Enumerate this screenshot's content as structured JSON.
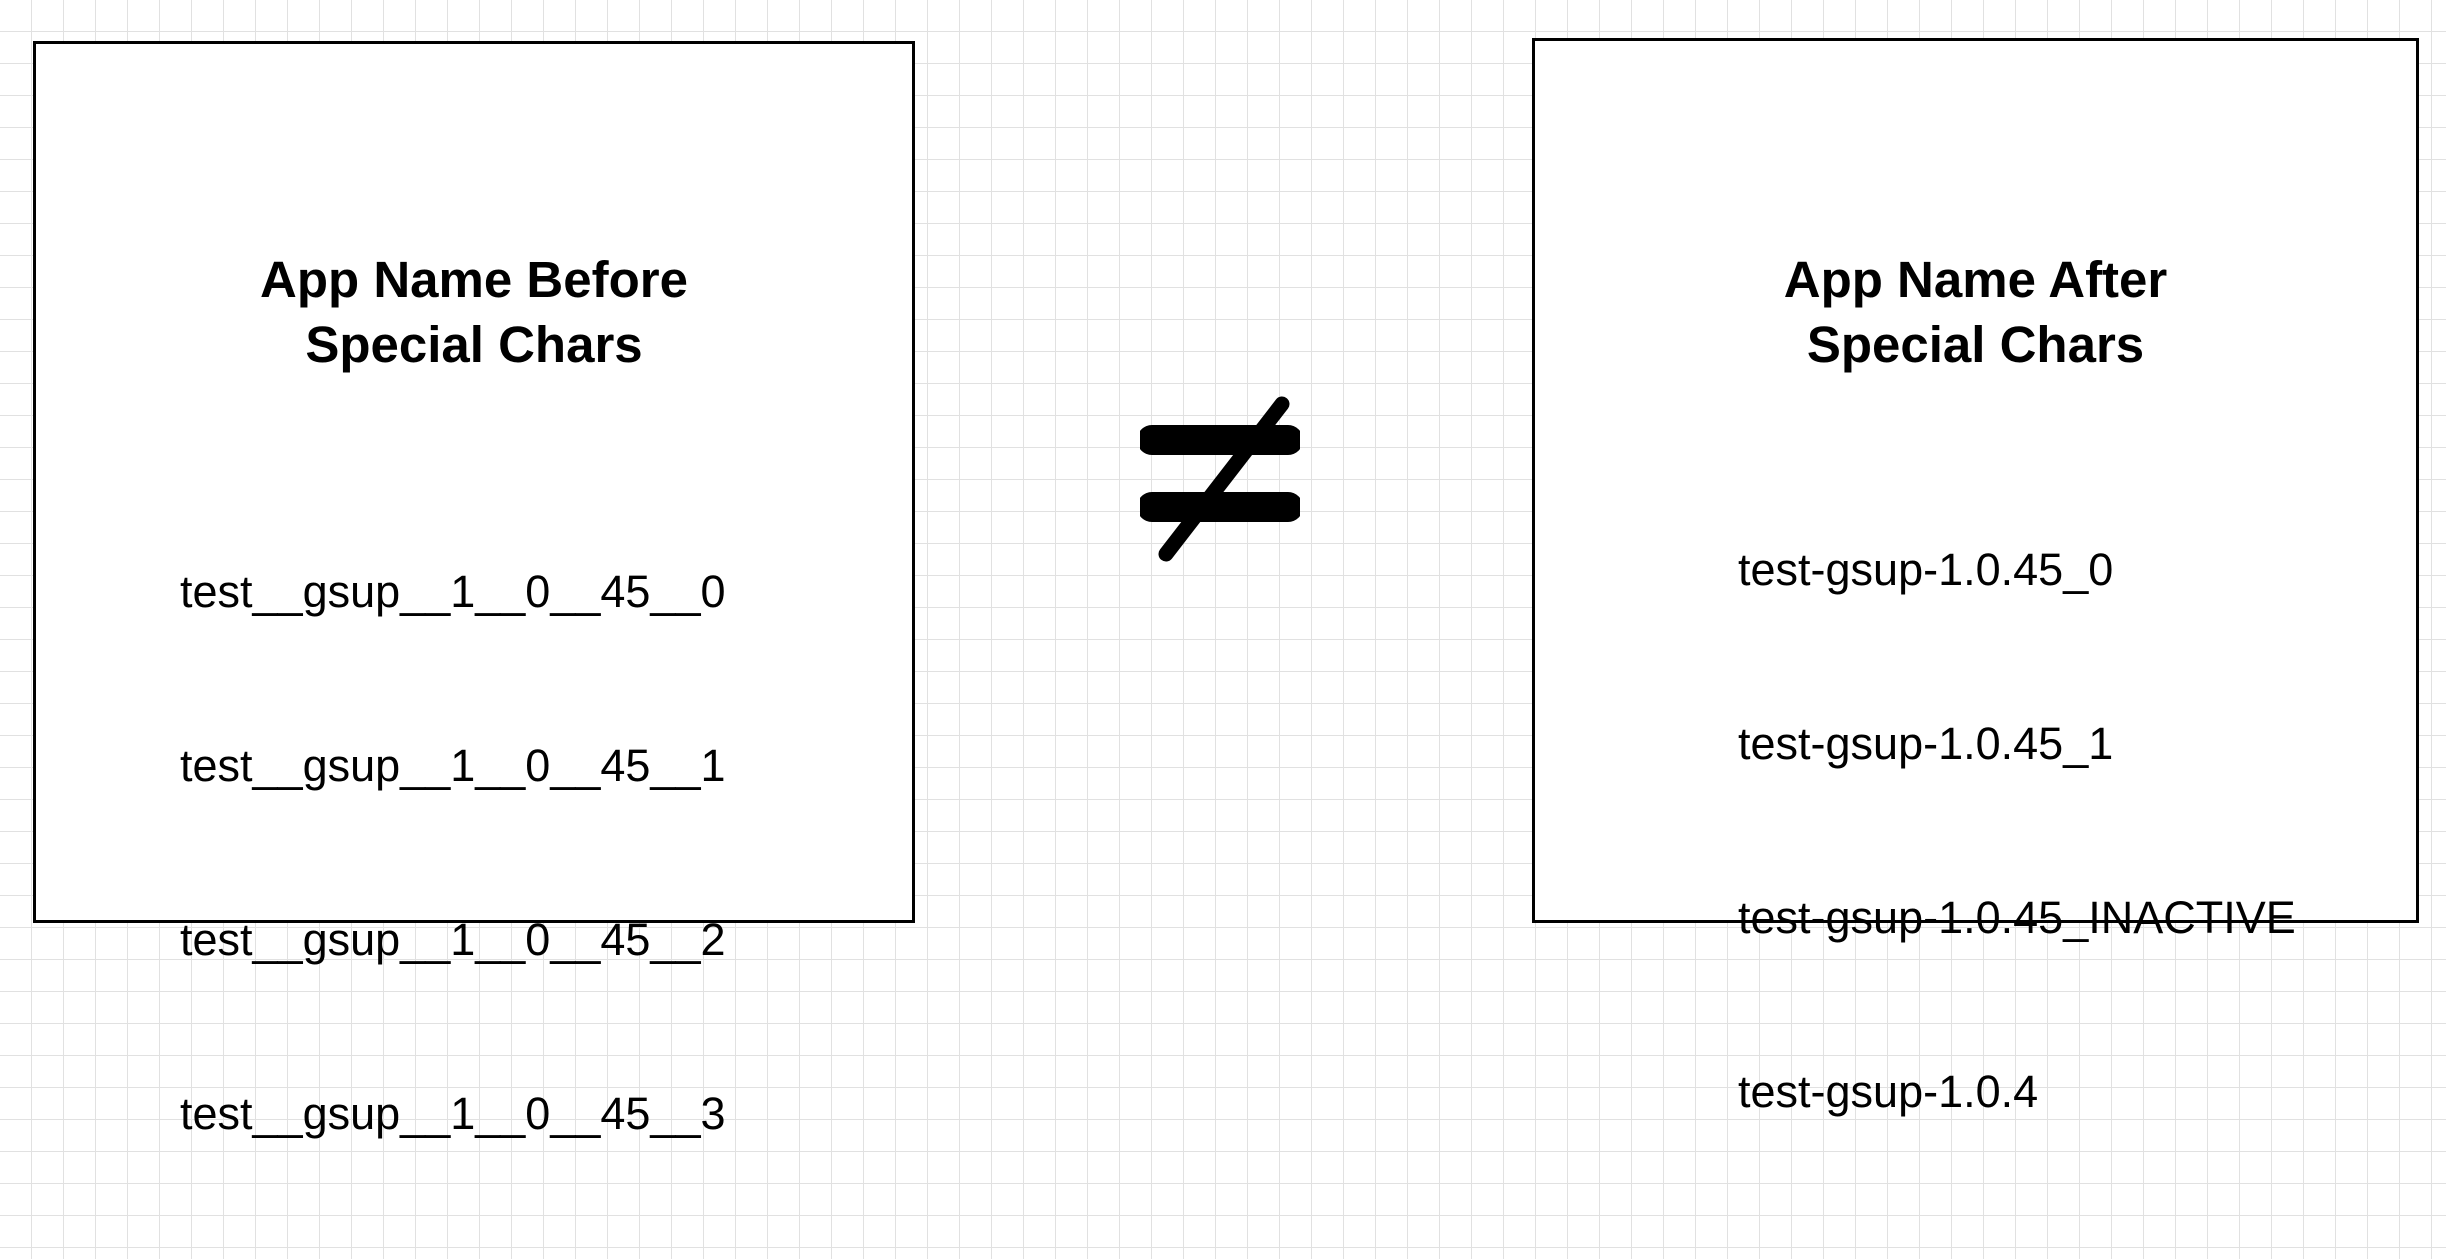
{
  "before": {
    "title_line1": "App Name Before",
    "title_line2": "Special Chars",
    "names": [
      "test__gsup__1__0__45__0",
      "test__gsup__1__0__45__1",
      "test__gsup__1__0__45__2",
      "test__gsup__1__0__45__3"
    ]
  },
  "after": {
    "title_line1": "App Name After",
    "title_line2": "Special Chars",
    "names": [
      "test-gsup-1.0.45_0",
      "test-gsup-1.0.45_1",
      "test-gsup-1.0.45_INACTIVE",
      "test-gsup-1.0.4"
    ]
  },
  "connector": {
    "icon": "not-equal-icon"
  },
  "colors": {
    "background": "#ffffff",
    "grid": "#e1e1e1",
    "ink": "#000000"
  }
}
